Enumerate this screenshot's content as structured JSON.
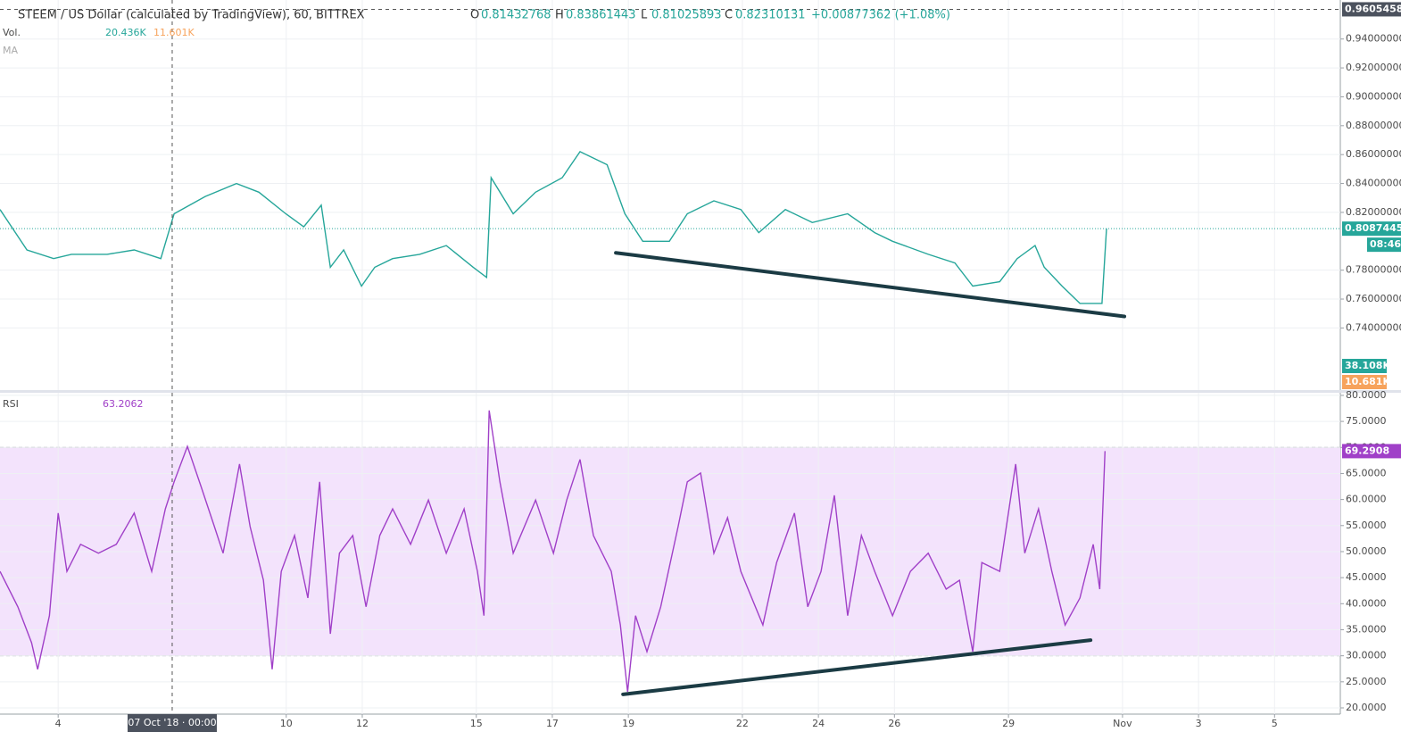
{
  "header": {
    "ohlc": [
      {
        "key": "O",
        "value": 0.81432768
      },
      {
        "key": "H",
        "value": 0.83861443
      },
      {
        "key": "L",
        "value": 0.81025893
      },
      {
        "key": "C",
        "value": 0.82310131
      }
    ],
    "change": "+0.00877362 (+1.08%)",
    "volume_name": "Vol.",
    "volume_legend": [
      "20.436K",
      "11.601K"
    ],
    "volume_labels": [
      "38.108K",
      "10.681K"
    ],
    "ma_name": "MA",
    "last_time": "08:46"
  },
  "crosshair": {
    "x": 7.0,
    "x_label": "07 Oct '18 · 00:00",
    "y": 0.96054583
  },
  "chart_data": [
    {
      "type": "line",
      "title": "STEEM / US Dollar (calculated by TradingView), 60, BITTREX",
      "color": "#26a69a",
      "grid": true,
      "x": [
        2.47,
        3.18,
        3.88,
        4.35,
        5.29,
        6.0,
        6.7,
        7.05,
        7.87,
        8.69,
        9.28,
        9.99,
        10.46,
        10.92,
        11.16,
        11.51,
        11.98,
        12.33,
        12.8,
        13.51,
        14.21,
        14.92,
        15.27,
        15.39,
        15.97,
        16.56,
        17.26,
        17.73,
        18.44,
        18.91,
        19.38,
        20.08,
        20.55,
        21.25,
        21.96,
        22.43,
        23.13,
        23.84,
        24.77,
        25.48,
        25.95,
        26.89,
        27.59,
        28.06,
        28.77,
        29.23,
        29.7,
        29.94,
        30.41,
        30.88,
        31.46,
        31.58
      ],
      "values": [
        0.822,
        0.794,
        0.788,
        0.791,
        0.791,
        0.794,
        0.788,
        0.819,
        0.831,
        0.84,
        0.834,
        0.819,
        0.81,
        0.825,
        0.782,
        0.794,
        0.769,
        0.782,
        0.788,
        0.791,
        0.797,
        0.782,
        0.775,
        0.844,
        0.819,
        0.834,
        0.844,
        0.862,
        0.853,
        0.819,
        0.8,
        0.8,
        0.819,
        0.828,
        0.822,
        0.806,
        0.822,
        0.813,
        0.819,
        0.806,
        0.8,
        0.791,
        0.785,
        0.769,
        0.772,
        0.788,
        0.797,
        0.782,
        0.769,
        0.757,
        0.757,
        0.80874457
      ],
      "xlim": [
        2.47,
        37.73
      ],
      "ylim": [
        0.697,
        0.967
      ],
      "yticks": [
        {
          "value": 0.74,
          "label": "0.74000000"
        },
        {
          "value": 0.76,
          "label": "0.76000000"
        },
        {
          "value": 0.78,
          "label": "0.78000000"
        },
        {
          "value": 0.82,
          "label": "0.82000000"
        },
        {
          "value": 0.84,
          "label": "0.84000000"
        },
        {
          "value": 0.86,
          "label": "0.86000000"
        },
        {
          "value": 0.88,
          "label": "0.88000000"
        },
        {
          "value": 0.9,
          "label": "0.90000000"
        },
        {
          "value": 0.92,
          "label": "0.92000000"
        },
        {
          "value": 0.94,
          "label": "0.94000000"
        }
      ],
      "trendline": {
        "color": "#1b3b44",
        "x": [
          18.67,
          32.05
        ],
        "y": [
          0.792,
          0.748
        ]
      }
    },
    {
      "type": "line",
      "title": "RSI",
      "legend_value": 63.2062,
      "color": "#a040c8",
      "grid": true,
      "bands": [
        30,
        70
      ],
      "band_color": "#f3e3fc",
      "x": [
        2.47,
        2.94,
        3.3,
        3.46,
        3.77,
        4.0,
        4.23,
        4.59,
        5.06,
        5.53,
        6.0,
        6.46,
        6.82,
        7.05,
        7.4,
        7.76,
        8.11,
        8.34,
        8.77,
        9.05,
        9.4,
        9.63,
        9.87,
        10.22,
        10.57,
        10.88,
        11.16,
        11.4,
        11.75,
        12.1,
        12.46,
        12.8,
        13.27,
        13.74,
        14.21,
        14.68,
        15.03,
        15.2,
        15.34,
        15.62,
        15.97,
        16.56,
        17.03,
        17.38,
        17.73,
        18.08,
        18.55,
        18.79,
        18.98,
        19.19,
        19.49,
        19.85,
        20.31,
        20.55,
        20.9,
        21.25,
        21.61,
        21.96,
        22.54,
        22.9,
        23.37,
        23.72,
        24.07,
        24.42,
        24.77,
        25.13,
        25.48,
        25.95,
        26.42,
        26.89,
        27.36,
        27.71,
        28.06,
        28.3,
        28.77,
        29.19,
        29.43,
        29.79,
        30.14,
        30.49,
        30.88,
        31.23,
        31.4,
        31.54
      ],
      "values": [
        46.2,
        39.4,
        32.5,
        27.4,
        37.7,
        57.4,
        46.2,
        51.4,
        49.7,
        51.4,
        57.4,
        46.2,
        58.2,
        63.4,
        70.2,
        62.5,
        54.8,
        49.7,
        66.8,
        54.8,
        44.5,
        27.4,
        46.2,
        53.1,
        41.1,
        63.4,
        34.2,
        49.7,
        53.1,
        39.4,
        53.1,
        58.2,
        51.4,
        59.9,
        49.7,
        58.2,
        46.2,
        37.7,
        77.1,
        63.4,
        49.7,
        59.9,
        49.7,
        59.9,
        67.7,
        53.1,
        46.2,
        35.9,
        23.1,
        37.7,
        30.8,
        39.4,
        54.8,
        63.4,
        65.1,
        49.7,
        56.5,
        46.2,
        35.9,
        47.9,
        57.4,
        39.4,
        46.2,
        60.8,
        37.7,
        53.1,
        46.2,
        37.7,
        46.2,
        49.7,
        42.8,
        44.5,
        30.8,
        47.9,
        46.2,
        66.8,
        49.7,
        58.2,
        46.2,
        35.9,
        41.1,
        51.4,
        42.8,
        69.2908
      ],
      "xlim": [
        2.47,
        37.73
      ],
      "ylim": [
        18.8,
        80.5
      ],
      "yticks": [
        {
          "value": 20,
          "label": "20.0000"
        },
        {
          "value": 25,
          "label": "25.0000"
        },
        {
          "value": 30,
          "label": "30.0000"
        },
        {
          "value": 35,
          "label": "35.0000"
        },
        {
          "value": 40,
          "label": "40.0000"
        },
        {
          "value": 45,
          "label": "45.0000"
        },
        {
          "value": 50,
          "label": "50.0000"
        },
        {
          "value": 55,
          "label": "55.0000"
        },
        {
          "value": 60,
          "label": "60.0000"
        },
        {
          "value": 65,
          "label": "65.0000"
        },
        {
          "value": 70,
          "label": "70.0000"
        },
        {
          "value": 75,
          "label": "75.0000"
        },
        {
          "value": 80,
          "label": "80.0000"
        }
      ],
      "xticks": [
        4,
        10,
        12,
        15,
        17,
        19,
        22,
        24,
        26,
        29,
        {
          "value": 32,
          "label": "Nov"
        },
        {
          "value": 34,
          "label": "3"
        },
        {
          "value": 36,
          "label": "5"
        }
      ],
      "trendline": {
        "color": "#1b3b44",
        "x": [
          18.86,
          31.16
        ],
        "y": [
          22.6,
          33.0
        ]
      }
    }
  ]
}
